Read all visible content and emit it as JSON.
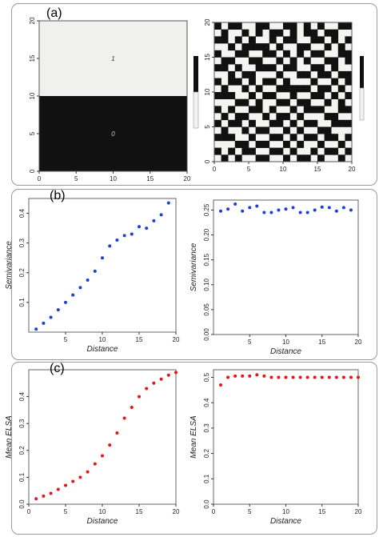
{
  "panels": {
    "a": "(a)",
    "b": "(b)",
    "c": "(c)"
  },
  "chart_data": [
    {
      "id": "a-left",
      "type": "heatmap",
      "title": "",
      "xlim": [
        0,
        20
      ],
      "ylim": [
        0,
        20
      ],
      "x_ticks": [
        "0",
        "5",
        "10",
        "15",
        "20"
      ],
      "y_ticks": [
        "0",
        "5",
        "10",
        "15",
        "20"
      ],
      "regions": [
        {
          "label": "0",
          "y_range": [
            0,
            10
          ],
          "color": "#111111"
        },
        {
          "label": "1",
          "y_range": [
            10,
            20
          ],
          "color": "#f0f0ee"
        }
      ]
    },
    {
      "id": "a-right",
      "type": "heatmap",
      "title": "",
      "xlim": [
        0,
        20
      ],
      "ylim": [
        0,
        20
      ],
      "x_ticks": [
        "0",
        "5",
        "10",
        "15",
        "20"
      ],
      "y_ticks": [
        "0",
        "5",
        "10",
        "15",
        "20"
      ],
      "grid_size": 20,
      "grid": [
        "10110011001101010011",
        "01001010110101101100",
        "11010100101100110101",
        "00101111010011001010",
        "10011001101010110011",
        "01100110010101001101",
        "11010011101100110100",
        "00101100010011011011",
        "10110101101000100101",
        "01001010011111011010",
        "11100101100100110101",
        "00011010011011001010",
        "10100110100101110011",
        "01011001011010001100",
        "10110100110101100111",
        "01001011001010011000",
        "11100100110101101101",
        "00011011001010010010",
        "10101100110100101101",
        "01010011001011010010"
      ]
    },
    {
      "id": "b-left",
      "type": "scatter",
      "title": "",
      "xlabel": "Distance",
      "ylabel": "Semivariance",
      "xlim": [
        0,
        20
      ],
      "ylim": [
        0,
        0.45
      ],
      "x_ticks": [
        "5",
        "10",
        "15",
        "20"
      ],
      "y_ticks": [
        "0.1",
        "0.2",
        "0.3",
        "0.4"
      ],
      "color": "#1f3fd0",
      "x": [
        1,
        2,
        3,
        4,
        5,
        6,
        7,
        8,
        9,
        10,
        11,
        12,
        13,
        14,
        15,
        16,
        17,
        18,
        19
      ],
      "y": [
        0.01,
        0.03,
        0.05,
        0.075,
        0.1,
        0.125,
        0.15,
        0.175,
        0.205,
        0.25,
        0.29,
        0.31,
        0.325,
        0.33,
        0.355,
        0.35,
        0.375,
        0.395,
        0.435
      ]
    },
    {
      "id": "b-right",
      "type": "scatter",
      "title": "",
      "xlabel": "Distance",
      "ylabel": "Semivariance",
      "xlim": [
        0,
        20
      ],
      "ylim": [
        0,
        0.27
      ],
      "x_ticks": [
        "5",
        "10",
        "15",
        "20"
      ],
      "y_ticks": [
        "0.00",
        "0.05",
        "0.10",
        "0.15",
        "0.20",
        "0.25"
      ],
      "color": "#1f3fd0",
      "x": [
        1,
        2,
        3,
        4,
        5,
        6,
        7,
        8,
        9,
        10,
        11,
        12,
        13,
        14,
        15,
        16,
        17,
        18,
        19
      ],
      "y": [
        0.248,
        0.252,
        0.262,
        0.248,
        0.255,
        0.258,
        0.245,
        0.245,
        0.25,
        0.252,
        0.255,
        0.245,
        0.245,
        0.25,
        0.256,
        0.255,
        0.248,
        0.255,
        0.25
      ]
    },
    {
      "id": "c-left",
      "type": "scatter",
      "title": "",
      "xlabel": "Distance",
      "ylabel": "Mean ELSA",
      "xlim": [
        0,
        20
      ],
      "ylim": [
        0,
        0.5
      ],
      "x_ticks": [
        "0",
        "5",
        "10",
        "15",
        "20"
      ],
      "y_ticks": [
        "0.0",
        "0.1",
        "0.2",
        "0.3",
        "0.4"
      ],
      "color": "#e01818",
      "x": [
        1,
        2,
        3,
        4,
        5,
        6,
        7,
        8,
        9,
        10,
        11,
        12,
        13,
        14,
        15,
        16,
        17,
        18,
        19,
        20
      ],
      "y": [
        0.02,
        0.03,
        0.04,
        0.055,
        0.07,
        0.085,
        0.1,
        0.12,
        0.15,
        0.18,
        0.22,
        0.265,
        0.32,
        0.36,
        0.4,
        0.43,
        0.45,
        0.465,
        0.48,
        0.49
      ]
    },
    {
      "id": "c-right",
      "type": "scatter",
      "title": "",
      "xlabel": "Distance",
      "ylabel": "Mean ELSA",
      "xlim": [
        0,
        20
      ],
      "ylim": [
        0,
        0.53
      ],
      "x_ticks": [
        "0",
        "5",
        "10",
        "15",
        "20"
      ],
      "y_ticks": [
        "0.0",
        "0.1",
        "0.2",
        "0.3",
        "0.4",
        "0.5"
      ],
      "color": "#e01818",
      "x": [
        1,
        2,
        3,
        4,
        5,
        6,
        7,
        8,
        9,
        10,
        11,
        12,
        13,
        14,
        15,
        16,
        17,
        18,
        19,
        20
      ],
      "y": [
        0.47,
        0.5,
        0.505,
        0.505,
        0.505,
        0.51,
        0.505,
        0.5,
        0.5,
        0.5,
        0.5,
        0.5,
        0.5,
        0.5,
        0.5,
        0.5,
        0.5,
        0.5,
        0.5,
        0.5
      ]
    }
  ]
}
